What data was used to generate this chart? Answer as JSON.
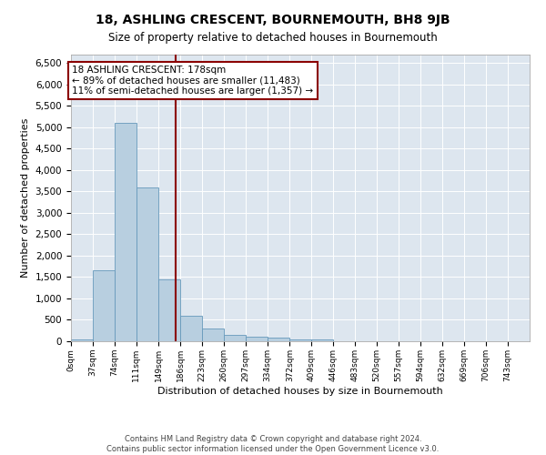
{
  "title": "18, ASHLING CRESCENT, BOURNEMOUTH, BH8 9JB",
  "subtitle": "Size of property relative to detached houses in Bournemouth",
  "xlabel": "Distribution of detached houses by size in Bournemouth",
  "ylabel": "Number of detached properties",
  "bar_color": "#b8cfe0",
  "bar_edge_color": "#6699bb",
  "background_color": "#dde6ef",
  "bin_labels": [
    "0sqm",
    "37sqm",
    "74sqm",
    "111sqm",
    "149sqm",
    "186sqm",
    "223sqm",
    "260sqm",
    "297sqm",
    "334sqm",
    "372sqm",
    "409sqm",
    "446sqm",
    "483sqm",
    "520sqm",
    "557sqm",
    "594sqm",
    "632sqm",
    "669sqm",
    "706sqm",
    "743sqm"
  ],
  "bin_edges": [
    0,
    37,
    74,
    111,
    149,
    186,
    223,
    260,
    297,
    334,
    372,
    409,
    446,
    483,
    520,
    557,
    594,
    632,
    669,
    706,
    743,
    780
  ],
  "bar_heights": [
    50,
    1650,
    5100,
    3600,
    1450,
    600,
    300,
    150,
    100,
    75,
    50,
    50,
    10,
    5,
    5,
    5,
    5,
    5,
    5,
    5,
    5
  ],
  "vline_x": 178,
  "vline_color": "#8b0000",
  "annotation_title": "18 ASHLING CRESCENT: 178sqm",
  "annotation_line1": "← 89% of detached houses are smaller (11,483)",
  "annotation_line2": "11% of semi-detached houses are larger (1,357) →",
  "annotation_box_color": "#8b0000",
  "ylim": [
    0,
    6700
  ],
  "yticks": [
    0,
    500,
    1000,
    1500,
    2000,
    2500,
    3000,
    3500,
    4000,
    4500,
    5000,
    5500,
    6000,
    6500
  ],
  "footer1": "Contains HM Land Registry data © Crown copyright and database right 2024.",
  "footer2": "Contains public sector information licensed under the Open Government Licence v3.0.",
  "title_fontsize": 10,
  "subtitle_fontsize": 8.5,
  "figwidth": 6.0,
  "figheight": 5.0,
  "dpi": 100
}
